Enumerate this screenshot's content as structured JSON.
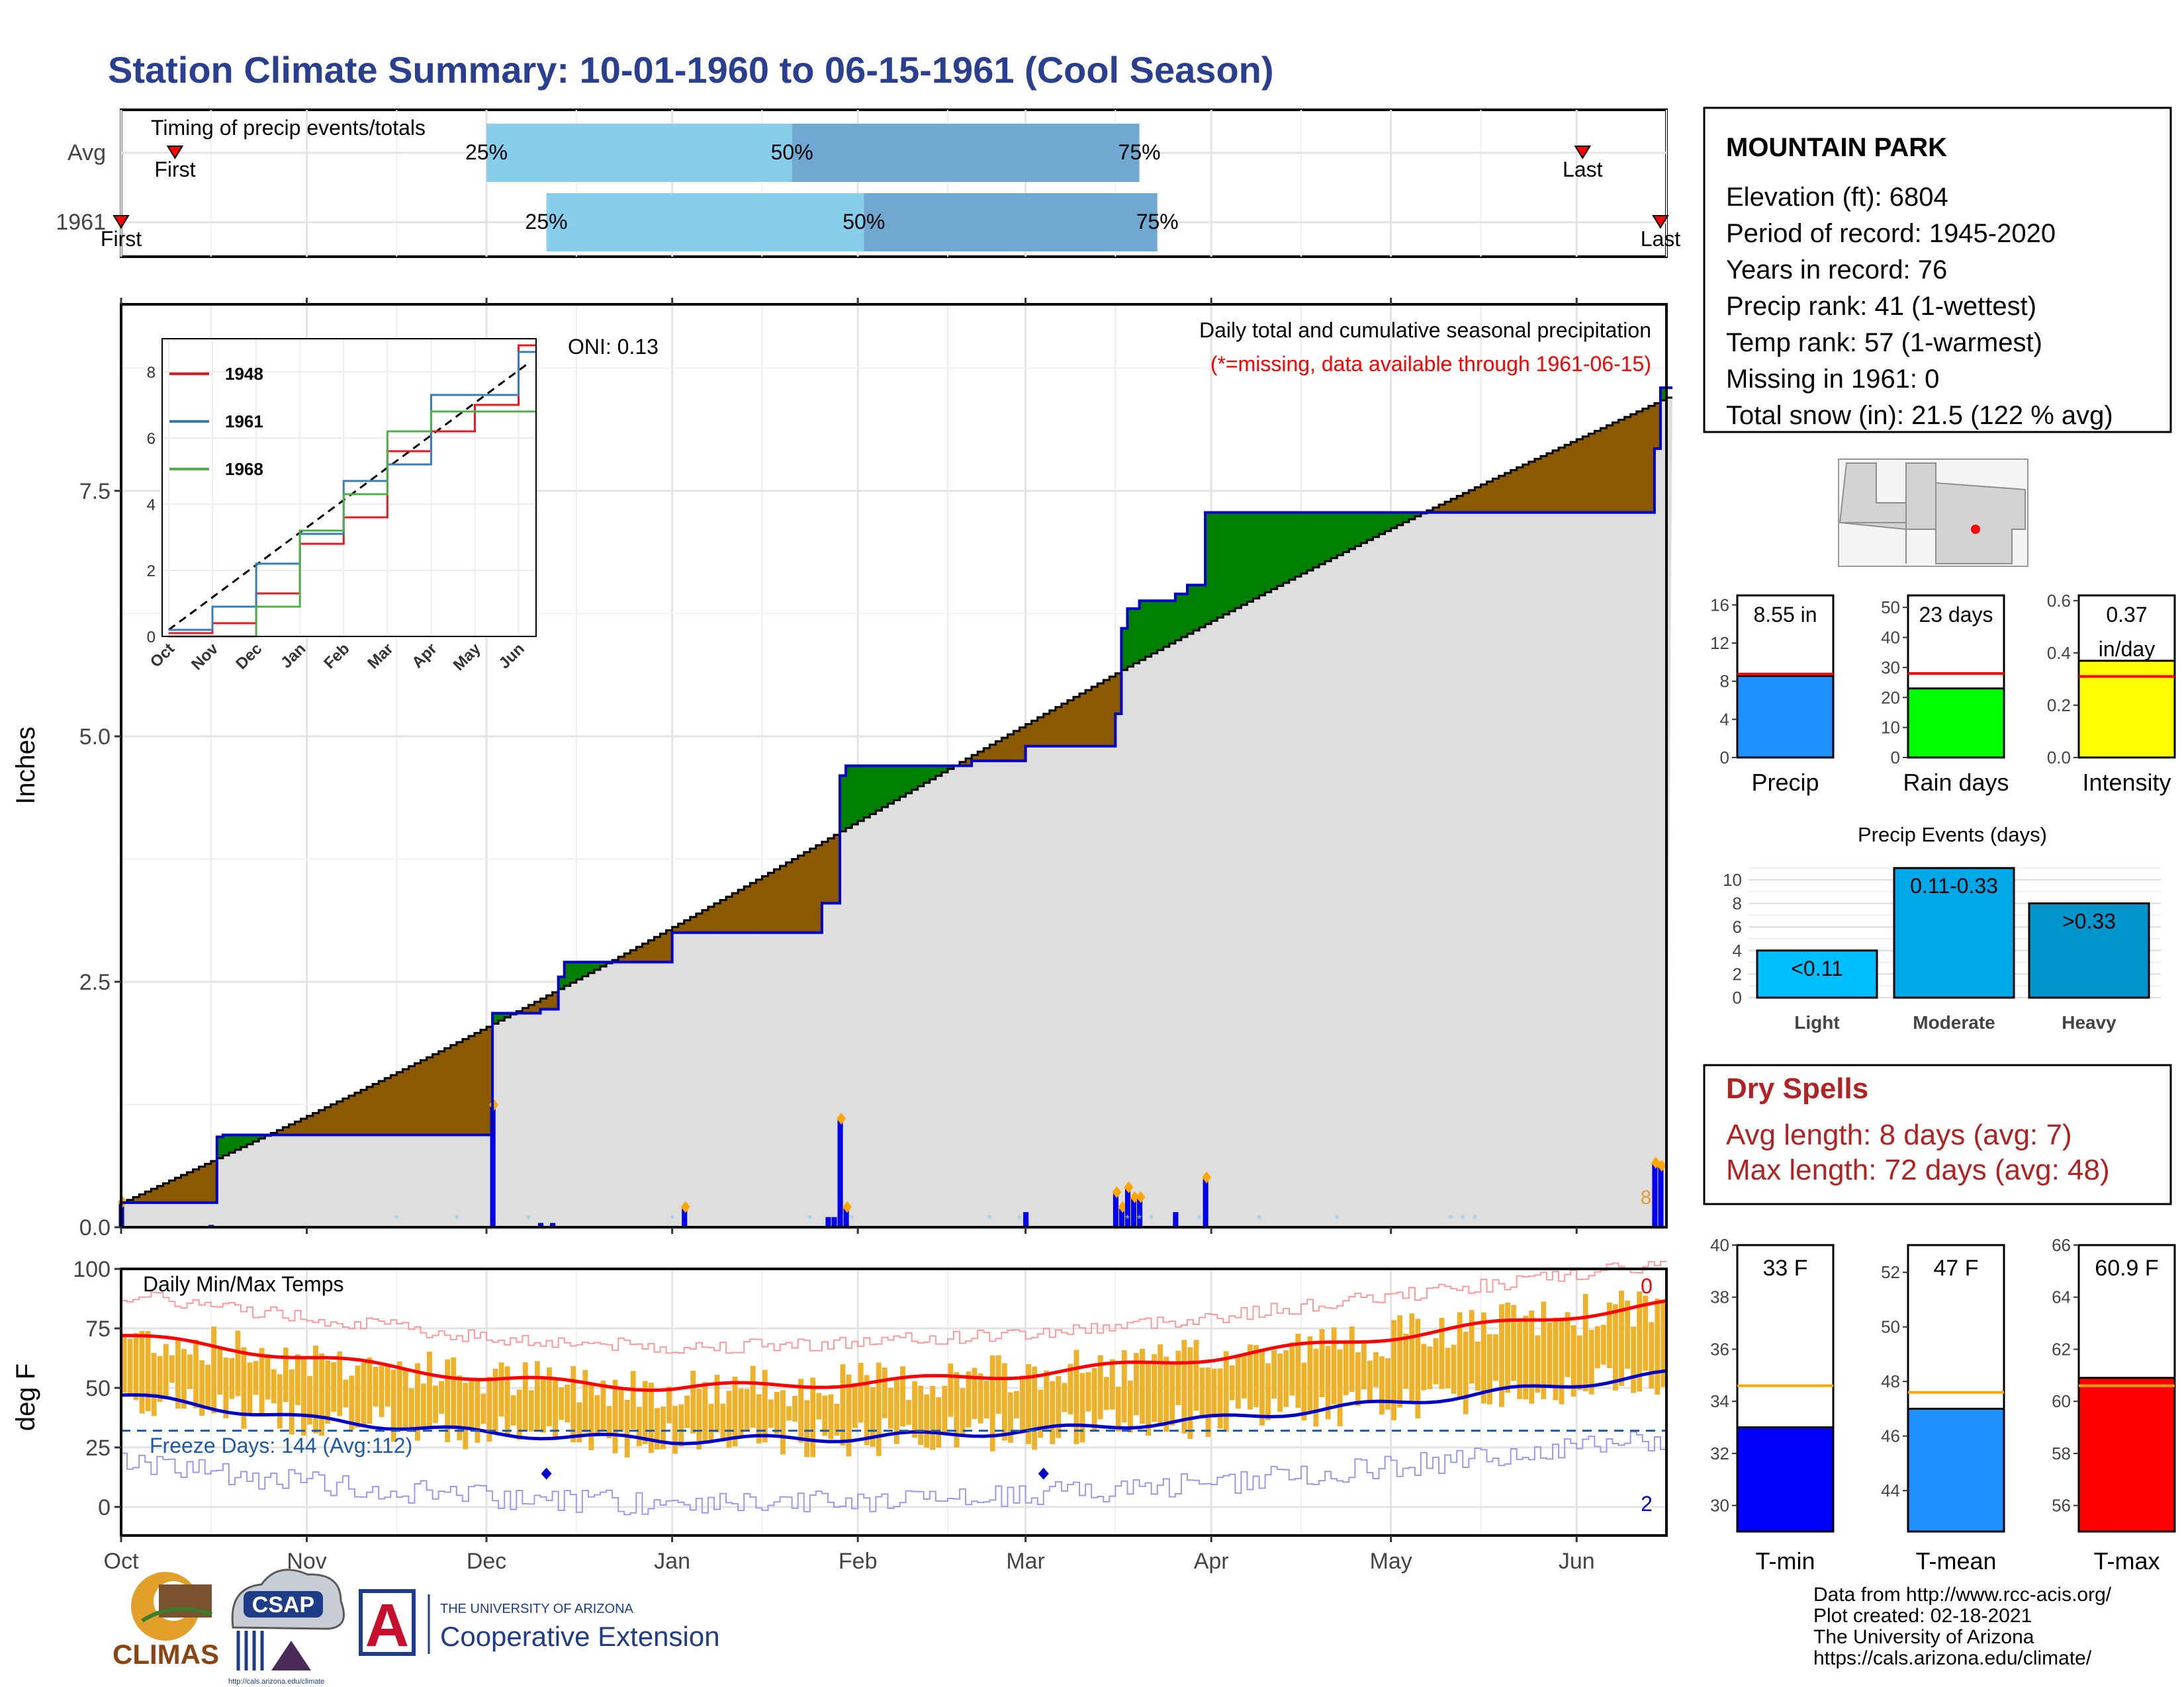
{
  "title": "Station Climate Summary: 10-01-1960 to 06-15-1961 (Cool Season)",
  "timing": {
    "label": "Timing of precip events/totals",
    "rows": [
      "Avg",
      "1961"
    ],
    "first_label": "First",
    "last_label": "Last",
    "avg": {
      "first": "2021-10-10",
      "p25": "2021-12-01",
      "p50": "2022-01-21",
      "p75": "2022-03-20",
      "last": "2022-06-02"
    },
    "y1961": {
      "first": "2021-10-01",
      "p25": "2021-12-11",
      "p50": "2022-02-02",
      "p75": "2022-03-23",
      "last": "2022-06-15"
    },
    "pct_labels": [
      "25%",
      "50%",
      "75%"
    ],
    "colors": {
      "q1": "#87ceeb",
      "q2": "#6fa8d0"
    }
  },
  "station": {
    "name": "MOUNTAIN PARK",
    "lines": [
      "Elevation (ft): 6804",
      "Period of record: 1945-2020",
      "Years in record: 76",
      "Precip rank: 41 (1-wettest)",
      "Temp rank: 57 (1-warmest)",
      "Missing in 1961: 0",
      "Total snow (in): 21.5 (122 % avg)"
    ]
  },
  "main_precip": {
    "ylabel": "Inches",
    "note": "Daily total and cumulative seasonal precipitation",
    "missing_note": "(*=missing, data available through 1961-06-15)",
    "oni_label": "ONI: 0.13",
    "yticks": [
      "0.0",
      "2.5",
      "5.0",
      "7.5"
    ],
    "xticks": [
      "Oct",
      "Nov",
      "Dec",
      "Jan",
      "Feb",
      "Mar",
      "Apr",
      "May",
      "Jun"
    ],
    "end_marker": "8"
  },
  "inset": {
    "yticks": [
      "0",
      "2",
      "4",
      "6",
      "8"
    ],
    "xticks": [
      "Oct",
      "Nov",
      "Dec",
      "Jan",
      "Feb",
      "Mar",
      "Apr",
      "May",
      "Jun"
    ],
    "legend": [
      "1948",
      "1961",
      "1968"
    ],
    "colors": [
      "#e41a1c",
      "#377eb8",
      "#4daf4a"
    ]
  },
  "bars_small": [
    {
      "label": "Precip",
      "value_text": "8.55 in",
      "yticks": [
        "0",
        "4",
        "8",
        "12",
        "16"
      ],
      "ymax": 17,
      "value": 8.55,
      "avg": 8.75,
      "color": "#1e90ff"
    },
    {
      "label": "Rain days",
      "value_text": "23 days",
      "yticks": [
        "0",
        "10",
        "20",
        "30",
        "40",
        "50"
      ],
      "ymax": 54,
      "value": 23,
      "avg": 28,
      "color": "#00ff00"
    },
    {
      "label": "Intensity",
      "value_text": "0.37 in/day",
      "value_lines": [
        "0.37",
        "in/day"
      ],
      "yticks": [
        "0.0",
        "0.2",
        "0.4",
        "0.6"
      ],
      "ymax": 0.62,
      "value": 0.37,
      "avg": 0.31,
      "color": "#ffff00"
    }
  ],
  "events": {
    "title": "Precip Events (days)",
    "yticks": [
      "0",
      "2",
      "4",
      "6",
      "8",
      "10"
    ],
    "categories": [
      "Light",
      "Moderate",
      "Heavy"
    ],
    "bar_labels": [
      "<0.11",
      "0.11-0.33",
      ">0.33"
    ],
    "values": [
      4,
      11,
      8
    ],
    "colors": [
      "#00bfff",
      "#00a8e8",
      "#0096cc"
    ]
  },
  "dry_spells": {
    "title": "Dry Spells",
    "avg_line": "Avg length: 8 days (avg: 7)",
    "max_line": "Max length: 72 days (avg: 48)"
  },
  "temps": {
    "ylabel": "deg F",
    "label": "Daily Min/Max Temps",
    "freeze_label": "Freeze Days: 144 (Avg:112)",
    "yticks": [
      "0",
      "25",
      "50",
      "75",
      "100"
    ],
    "xticks": [
      "Oct",
      "Nov",
      "Dec",
      "Jan",
      "Feb",
      "Mar",
      "Apr",
      "May",
      "Jun"
    ],
    "record_high_count": "0",
    "record_low_count": "2"
  },
  "temp_bars": [
    {
      "label": "T-min",
      "value_text": "33 F",
      "yticks": [
        "30",
        "32",
        "34",
        "36",
        "38",
        "40"
      ],
      "ymin": 29,
      "ymax": 40,
      "value": 33,
      "avg": 34.6,
      "color": "#0000ff"
    },
    {
      "label": "T-mean",
      "value_text": "47 F",
      "yticks": [
        "44",
        "46",
        "48",
        "50",
        "52"
      ],
      "ymin": 42.5,
      "ymax": 53,
      "value": 47,
      "avg": 47.6,
      "color": "#1e90ff"
    },
    {
      "label": "T-max",
      "value_text": "60.9 F",
      "yticks": [
        "56",
        "58",
        "60",
        "62",
        "64",
        "66"
      ],
      "ymin": 55,
      "ymax": 66,
      "value": 60.9,
      "avg": 60.6,
      "color": "#ff0000"
    }
  ],
  "logos": {
    "climas": "CLIMAS",
    "csap": "CSAP",
    "csap_url": "http://cals.arizona.edu/climate",
    "ua_top": "THE UNIVERSITY OF ARIZONA",
    "ua_bottom": "Cooperative Extension",
    "ua_letter": "A"
  },
  "footer": [
    "Data from http://www.rcc-acis.org/",
    "Plot created: 02-18-2021",
    "The University of Arizona",
    "https://cals.arizona.edu/climate/"
  ],
  "chart_data": [
    {
      "type": "area",
      "title": "Daily total and cumulative seasonal precipitation",
      "ylabel": "Inches",
      "ylim": [
        0,
        9.4
      ],
      "note": "cumulative 1961 (blue step) vs average (black step); daily bars in blue",
      "series": [
        {
          "name": "1961",
          "x": [
            "1960-10-01",
            "1960-10-16",
            "1960-10-17",
            "1960-10-18",
            "1960-12-01",
            "1960-12-02",
            "1960-12-10",
            "1960-12-13",
            "1960-12-14",
            "1961-01-01",
            "1961-01-25",
            "1961-01-26",
            "1961-01-29",
            "1961-01-30",
            "1961-02-20",
            "1961-03-01",
            "1961-03-16",
            "1961-03-17",
            "1961-03-18",
            "1961-03-20",
            "1961-03-26",
            "1961-03-28",
            "1961-03-31",
            "1961-05-03",
            "1961-06-12",
            "1961-06-14",
            "1961-06-15"
          ],
          "values": [
            0.25,
            0.25,
            0.92,
            0.94,
            0.94,
            2.18,
            2.22,
            2.55,
            2.7,
            3.0,
            3.0,
            3.3,
            4.6,
            4.7,
            4.75,
            4.9,
            5.23,
            6.1,
            6.3,
            6.38,
            6.45,
            6.54,
            7.28,
            7.28,
            7.28,
            7.93,
            8.55
          ]
        }
      ],
      "daily_precip": {
        "x": [
          "1960-10-01",
          "1960-10-16",
          "1960-12-02",
          "1960-12-10",
          "1960-12-12",
          "1961-01-03",
          "1961-01-27",
          "1961-01-28",
          "1961-01-29",
          "1961-01-30",
          "1961-03-01",
          "1961-03-16",
          "1961-03-17",
          "1961-03-18",
          "1961-03-19",
          "1961-03-20",
          "1961-03-26",
          "1961-03-31",
          "1961-06-14",
          "1961-06-15"
        ],
        "values": [
          0.25,
          0.02,
          1.24,
          0.04,
          0.04,
          0.2,
          0.1,
          0.1,
          1.1,
          0.2,
          0.15,
          0.35,
          0.2,
          0.4,
          0.3,
          0.3,
          0.15,
          0.5,
          0.65,
          0.62
        ]
      }
    },
    {
      "type": "line",
      "title": "inset cumulative comparison",
      "series": [
        {
          "name": "1948",
          "x": [
            "Oct",
            "Nov",
            "Dec",
            "Jan",
            "Feb",
            "Mar",
            "Apr",
            "May",
            "Jun"
          ],
          "values": [
            0.1,
            0.4,
            1.3,
            2.8,
            3.6,
            5.6,
            6.2,
            7.0,
            8.8
          ]
        },
        {
          "name": "1961",
          "x": [
            "Oct",
            "Nov",
            "Dec",
            "Jan",
            "Feb",
            "Mar",
            "Apr",
            "May",
            "Jun"
          ],
          "values": [
            0.2,
            0.9,
            2.2,
            3.1,
            4.7,
            5.2,
            7.3,
            7.3,
            8.6
          ]
        },
        {
          "name": "1968",
          "x": [
            "Oct",
            "Nov",
            "Dec",
            "Jan",
            "Feb",
            "Mar",
            "Apr",
            "May",
            "Jun"
          ],
          "values": [
            0.0,
            0.0,
            0.9,
            3.2,
            4.3,
            6.2,
            6.8,
            6.8,
            6.8
          ]
        }
      ]
    },
    {
      "type": "bar",
      "title": "Precip Events (days)",
      "categories": [
        "Light",
        "Moderate",
        "Heavy"
      ],
      "values": [
        4,
        11,
        8
      ]
    },
    {
      "type": "line",
      "title": "Daily Min/Max Temps",
      "ylabel": "deg F",
      "ylim": [
        -12,
        100
      ],
      "series": [
        {
          "name": "avg max",
          "x": [
            "Oct",
            "Nov",
            "Dec",
            "Jan",
            "Feb",
            "Mar",
            "Apr",
            "May",
            "Jun"
          ],
          "values": [
            72,
            63,
            54,
            50,
            52,
            56,
            63,
            72,
            81
          ]
        },
        {
          "name": "avg min",
          "x": [
            "Oct",
            "Nov",
            "Dec",
            "Jan",
            "Feb",
            "Mar",
            "Apr",
            "May",
            "Jun"
          ],
          "values": [
            47,
            37,
            31,
            28,
            29,
            32,
            37,
            44,
            52
          ]
        },
        {
          "name": "freeze line",
          "x": [
            "Oct",
            "Jun"
          ],
          "values": [
            32,
            32
          ]
        }
      ]
    }
  ]
}
